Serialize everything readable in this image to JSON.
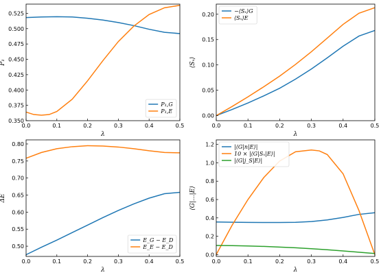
{
  "colors": {
    "blue": "#1f77b4",
    "orange": "#ff7f0e",
    "green": "#2ca02c"
  },
  "chart_data": [
    {
      "type": "line",
      "xlabel": "λ",
      "ylabel": "P₁",
      "xlim": [
        0,
        0.5
      ],
      "ylim": [
        0.35,
        0.54
      ],
      "xticks": [
        "0.0",
        "0.1",
        "0.2",
        "0.3",
        "0.4",
        "0.5"
      ],
      "yticks": [
        "0.350",
        "0.375",
        "0.400",
        "0.425",
        "0.450",
        "0.475",
        "0.500",
        "0.525"
      ],
      "legend_position": "lower-right",
      "series": [
        {
          "name": "P₁,G",
          "color": "#1f77b4",
          "x": [
            0,
            0.05,
            0.1,
            0.15,
            0.2,
            0.25,
            0.3,
            0.35,
            0.4,
            0.45,
            0.5
          ],
          "y": [
            0.518,
            0.519,
            0.5195,
            0.519,
            0.517,
            0.514,
            0.51,
            0.505,
            0.499,
            0.494,
            0.492
          ]
        },
        {
          "name": "P₁,E",
          "color": "#ff7f0e",
          "x": [
            0,
            0.025,
            0.05,
            0.075,
            0.1,
            0.15,
            0.2,
            0.25,
            0.3,
            0.35,
            0.4,
            0.45,
            0.5
          ],
          "y": [
            0.364,
            0.36,
            0.359,
            0.36,
            0.365,
            0.385,
            0.415,
            0.448,
            0.479,
            0.504,
            0.523,
            0.534,
            0.538
          ]
        }
      ]
    },
    {
      "type": "line",
      "xlabel": "λ",
      "ylabel": "⟨Sₓ⟩",
      "xlim": [
        0,
        0.5
      ],
      "ylim": [
        -0.01,
        0.22
      ],
      "xticks": [
        "0.0",
        "0.1",
        "0.2",
        "0.3",
        "0.4",
        "0.5"
      ],
      "yticks": [
        "0.00",
        "0.05",
        "0.10",
        "0.15",
        "0.20"
      ],
      "legend_position": "top-left",
      "series": [
        {
          "name": "−⟨Sₓ⟩G",
          "color": "#1f77b4",
          "x": [
            0,
            0.05,
            0.1,
            0.15,
            0.2,
            0.25,
            0.3,
            0.35,
            0.4,
            0.45,
            0.5
          ],
          "y": [
            0.0,
            0.012,
            0.025,
            0.039,
            0.054,
            0.072,
            0.092,
            0.114,
            0.137,
            0.157,
            0.168
          ]
        },
        {
          "name": "⟨Sₓ⟩E",
          "color": "#ff7f0e",
          "x": [
            0,
            0.05,
            0.1,
            0.15,
            0.2,
            0.25,
            0.3,
            0.35,
            0.4,
            0.45,
            0.5
          ],
          "y": [
            0.0,
            0.018,
            0.037,
            0.057,
            0.078,
            0.101,
            0.126,
            0.153,
            0.18,
            0.202,
            0.213
          ]
        }
      ]
    },
    {
      "type": "line",
      "xlabel": "λ",
      "ylabel": "ΔE",
      "xlim": [
        0,
        0.5
      ],
      "ylim": [
        0.47,
        0.812
      ],
      "xticks": [
        "0.0",
        "0.1",
        "0.2",
        "0.3",
        "0.4",
        "0.5"
      ],
      "yticks": [
        "0.50",
        "0.55",
        "0.60",
        "0.65",
        "0.70",
        "0.75",
        "0.80"
      ],
      "legend_position": "lower-right",
      "series": [
        {
          "name": "E_G − E_D",
          "color": "#1f77b4",
          "x": [
            0,
            0.05,
            0.1,
            0.15,
            0.2,
            0.25,
            0.3,
            0.35,
            0.4,
            0.45,
            0.5
          ],
          "y": [
            0.475,
            0.497,
            0.518,
            0.54,
            0.562,
            0.584,
            0.605,
            0.624,
            0.641,
            0.654,
            0.658
          ]
        },
        {
          "name": "E_E − E_D",
          "color": "#ff7f0e",
          "x": [
            0,
            0.05,
            0.1,
            0.15,
            0.2,
            0.25,
            0.3,
            0.35,
            0.4,
            0.45,
            0.5
          ],
          "y": [
            0.758,
            0.775,
            0.786,
            0.792,
            0.795,
            0.794,
            0.791,
            0.786,
            0.78,
            0.775,
            0.774
          ]
        }
      ]
    },
    {
      "type": "line",
      "xlabel": "λ",
      "ylabel": "⟨G|...|E⟩",
      "xlim": [
        0,
        0.5
      ],
      "ylim": [
        -0.02,
        1.25
      ],
      "xticks": [
        "0.0",
        "0.1",
        "0.2",
        "0.3",
        "0.4",
        "0.5"
      ],
      "yticks": [
        "0.0",
        "0.2",
        "0.4",
        "0.6",
        "0.8",
        "1.0",
        "1.2"
      ],
      "legend_position": "top-left",
      "series": [
        {
          "name": "|⟨G|n|E⟩|",
          "color": "#1f77b4",
          "x": [
            0,
            0.05,
            0.1,
            0.15,
            0.2,
            0.25,
            0.3,
            0.35,
            0.4,
            0.45,
            0.5
          ],
          "y": [
            0.355,
            0.353,
            0.351,
            0.35,
            0.35,
            0.352,
            0.36,
            0.378,
            0.405,
            0.438,
            0.456
          ]
        },
        {
          "name": "10 × |⟨G|Sₓ|E⟩|",
          "color": "#ff7f0e",
          "x": [
            0,
            0.025,
            0.05,
            0.1,
            0.15,
            0.2,
            0.25,
            0.3,
            0.325,
            0.35,
            0.4,
            0.45,
            0.475,
            0.5
          ],
          "y": [
            0.0,
            0.16,
            0.32,
            0.6,
            0.84,
            1.02,
            1.12,
            1.14,
            1.13,
            1.09,
            0.88,
            0.48,
            0.24,
            0.0
          ]
        },
        {
          "name": "|⟨G|j_S|E⟩|",
          "color": "#2ca02c",
          "x": [
            0,
            0.05,
            0.1,
            0.15,
            0.2,
            0.25,
            0.3,
            0.35,
            0.4,
            0.45,
            0.5
          ],
          "y": [
            0.1,
            0.098,
            0.094,
            0.089,
            0.082,
            0.074,
            0.064,
            0.053,
            0.04,
            0.026,
            0.012
          ]
        }
      ]
    }
  ]
}
